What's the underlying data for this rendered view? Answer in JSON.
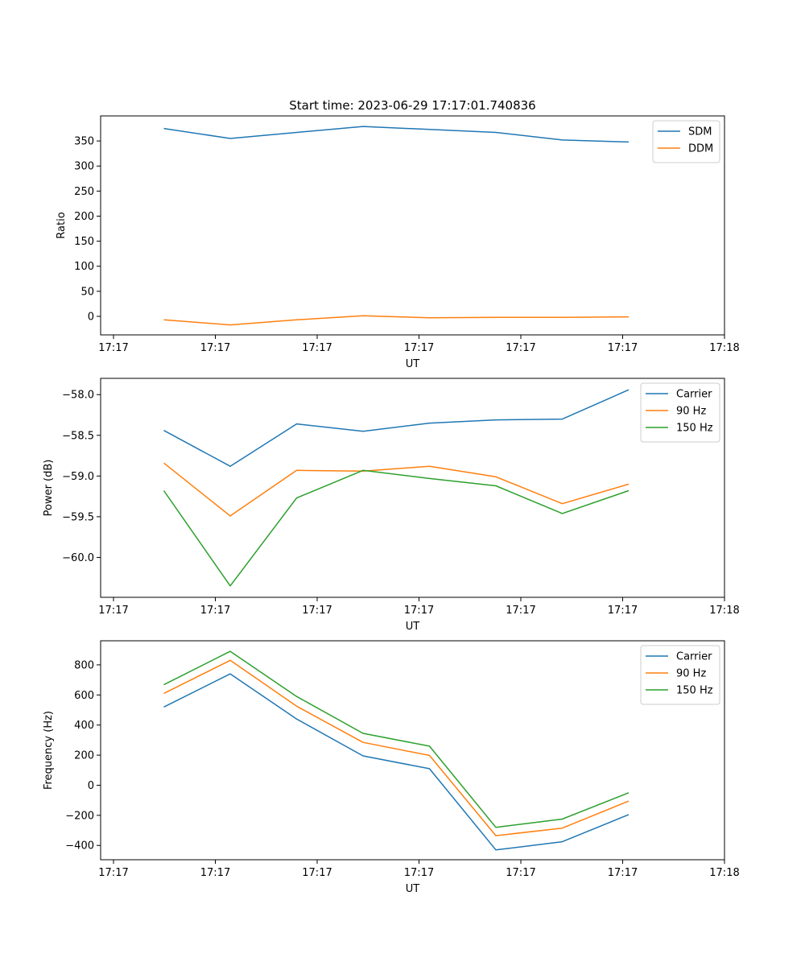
{
  "figure": {
    "title": "Start time: 2023-06-29 17:17:01.740836"
  },
  "chart_data": [
    {
      "type": "line",
      "title": "Start time: 2023-06-29 17:17:01.740836",
      "xlabel": "UT",
      "ylabel": "Ratio",
      "x_ticks": [
        "17:17",
        "17:17",
        "17:17",
        "17:17",
        "17:17",
        "17:17",
        "17:18"
      ],
      "y_ticks": [
        "0",
        "50",
        "100",
        "150",
        "200",
        "250",
        "300",
        "350"
      ],
      "ylim": [
        -37,
        400
      ],
      "grid": false,
      "legend": "upper-right",
      "series": [
        {
          "name": "SDM",
          "color": "#1f77b4",
          "values": [
            375,
            355,
            367,
            379,
            373,
            367,
            352,
            348
          ]
        },
        {
          "name": "DDM",
          "color": "#ff7f0e",
          "values": [
            -7,
            -17,
            -7,
            1,
            -3,
            -2,
            -2,
            -1
          ]
        }
      ]
    },
    {
      "type": "line",
      "xlabel": "UT",
      "ylabel": "Power (dB)",
      "x_ticks": [
        "17:17",
        "17:17",
        "17:17",
        "17:17",
        "17:17",
        "17:17",
        "17:18"
      ],
      "y_ticks": [
        "−58.0",
        "−58.5",
        "−59.0",
        "−59.5",
        "−60.0"
      ],
      "ylim": [
        -60.49,
        -57.8
      ],
      "grid": false,
      "legend": "upper-right",
      "series": [
        {
          "name": "Carrier",
          "color": "#1f77b4",
          "values": [
            -58.44,
            -58.88,
            -58.36,
            -58.45,
            -58.35,
            -58.31,
            -58.3,
            -57.94
          ]
        },
        {
          "name": "90 Hz",
          "color": "#ff7f0e",
          "values": [
            -58.84,
            -59.49,
            -58.93,
            -58.94,
            -58.88,
            -59.01,
            -59.34,
            -59.1
          ]
        },
        {
          "name": "150 Hz",
          "color": "#2ca02c",
          "values": [
            -59.18,
            -60.35,
            -59.27,
            -58.93,
            -59.03,
            -59.12,
            -59.46,
            -59.18
          ]
        }
      ]
    },
    {
      "type": "line",
      "xlabel": "UT",
      "ylabel": "Frequency (Hz)",
      "x_ticks": [
        "17:17",
        "17:17",
        "17:17",
        "17:17",
        "17:17",
        "17:17",
        "17:18"
      ],
      "y_ticks": [
        "−400",
        "−200",
        "0",
        "200",
        "400",
        "600",
        "800"
      ],
      "ylim": [
        -495,
        960
      ],
      "grid": false,
      "legend": "upper-right",
      "series": [
        {
          "name": "Carrier",
          "color": "#1f77b4",
          "values": [
            520,
            740,
            440,
            195,
            110,
            -430,
            -375,
            -195
          ]
        },
        {
          "name": "90 Hz",
          "color": "#ff7f0e",
          "values": [
            610,
            830,
            525,
            285,
            198,
            -335,
            -285,
            -105
          ]
        },
        {
          "name": "150 Hz",
          "color": "#2ca02c",
          "values": [
            668,
            890,
            590,
            345,
            260,
            -280,
            -225,
            -50
          ]
        }
      ]
    }
  ]
}
